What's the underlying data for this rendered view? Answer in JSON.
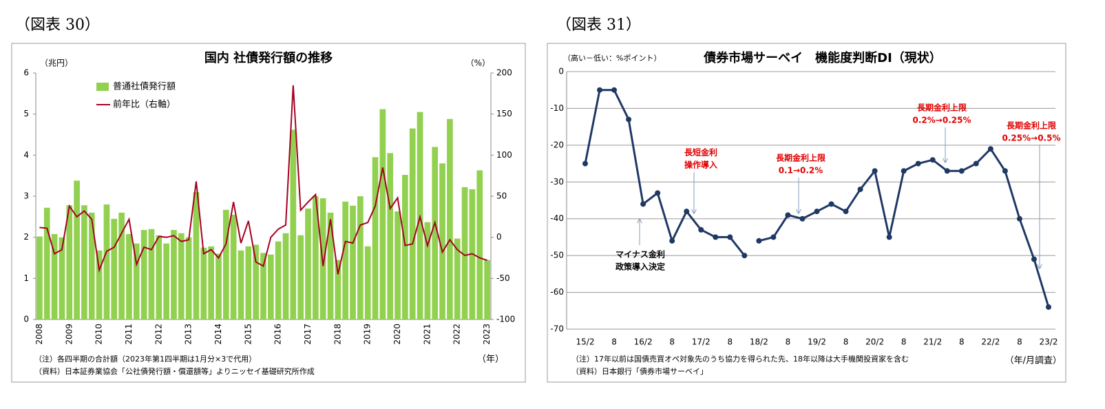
{
  "chart_data": [
    {
      "type": "bar",
      "figure_label": "（図表 30）",
      "title": "国内 社債発行額の推移",
      "y_label": "（兆円）",
      "y2_label": "（%）",
      "x_label": "（年）",
      "notes": [
        "（注）各四半期の合計額（2023年第1四半期は1月分×3で代用）",
        "（資料）日本証券業協会「公社債発行額・償還額等」よりニッセイ基礎研究所作成"
      ],
      "categories": [
        "2008",
        null,
        null,
        null,
        "2009",
        null,
        null,
        null,
        "2010",
        null,
        null,
        null,
        "2011",
        null,
        null,
        null,
        "2012",
        null,
        null,
        null,
        "2013",
        null,
        null,
        null,
        "2014",
        null,
        null,
        null,
        "2015",
        null,
        null,
        null,
        "2016",
        null,
        null,
        null,
        "2017",
        null,
        null,
        null,
        "2018",
        null,
        null,
        null,
        "2019",
        null,
        null,
        null,
        "2020",
        null,
        null,
        null,
        "2021",
        null,
        null,
        null,
        "2022",
        null,
        null,
        null,
        "2023"
      ],
      "series": [
        {
          "name": "普通社債発行額",
          "type": "bar",
          "color": "#92d050",
          "values": [
            2.02,
            2.72,
            2.08,
            2.0,
            2.78,
            3.38,
            2.78,
            2.6,
            1.68,
            2.8,
            2.45,
            2.6,
            2.08,
            1.85,
            2.18,
            2.2,
            2.05,
            1.85,
            2.18,
            2.1,
            2.0,
            3.1,
            1.75,
            1.78,
            1.6,
            2.67,
            2.55,
            1.68,
            1.78,
            1.82,
            1.62,
            1.58,
            1.9,
            2.1,
            4.62,
            2.05,
            2.7,
            3.0,
            2.95,
            2.6,
            1.45,
            2.87,
            2.77,
            3.0,
            1.78,
            3.95,
            5.12,
            4.05,
            2.63,
            3.52,
            4.65,
            5.05,
            2.37,
            4.2,
            3.8,
            4.88,
            1.97,
            3.22,
            3.17,
            3.63,
            1.45
          ]
        },
        {
          "name": "前年比（右軸）",
          "type": "line",
          "axis": "y2",
          "color": "#a50021",
          "values": [
            12,
            11,
            -20,
            -15,
            38,
            25,
            32,
            22,
            -40,
            -17,
            -12,
            5,
            22,
            -33,
            -12,
            -15,
            1,
            0,
            2,
            -5,
            -3,
            68,
            -20,
            -15,
            -25,
            -8,
            43,
            -7,
            20,
            -30,
            -35,
            0,
            10,
            15,
            185,
            33,
            43,
            52,
            -35,
            22,
            -45,
            -5,
            -7,
            15,
            18,
            38,
            85,
            35,
            48,
            -10,
            -8,
            25,
            -10,
            18,
            -18,
            -3,
            -15,
            -22,
            -20,
            -25,
            -28
          ]
        }
      ],
      "ylim": [
        0,
        6
      ],
      "yticks": [
        0,
        1,
        2,
        3,
        4,
        5,
        6
      ],
      "y2lim": [
        -100,
        200
      ],
      "y2ticks": [
        -100,
        -50,
        0,
        50,
        100,
        150,
        200
      ],
      "grid": false,
      "legend": "upper left"
    },
    {
      "type": "line",
      "figure_label": "（図表 31）",
      "title": "債券市場サーベイ　機能度判断DI（現状）",
      "y_label": "（高い－低い：%ポイント）",
      "x_label": "（年/月調査）",
      "notes": [
        "（注）17年以前は国債売買オペ対象先のうち協力を得られた先、18年以降は大手機関投資家を含む",
        "（資料）日本銀行「債券市場サーベイ」"
      ],
      "categories": [
        "15/2",
        null,
        "8",
        null,
        "16/2",
        null,
        "8",
        null,
        "17/2",
        null,
        "8",
        null,
        "18/2",
        null,
        "8",
        null,
        "19/2",
        null,
        "8",
        null,
        "20/2",
        null,
        "8",
        null,
        "21/2",
        null,
        "8",
        null,
        "22/2",
        null,
        "8",
        null,
        "23/2"
      ],
      "series": [
        {
          "color": "#1f3864",
          "values": [
            -25,
            -5,
            -5,
            -13,
            -36,
            -33,
            -46,
            -38,
            -43,
            -45,
            -45,
            -50,
            null,
            null,
            null,
            null,
            null,
            null,
            null,
            null,
            null,
            null,
            null,
            null,
            null,
            null,
            null,
            null,
            null,
            null,
            null,
            null,
            null
          ]
        },
        {
          "color": "#1f3864",
          "values": [
            null,
            null,
            null,
            null,
            null,
            null,
            null,
            null,
            null,
            null,
            null,
            null,
            -46,
            -45,
            -39,
            -40,
            -38,
            -36,
            -38,
            -32,
            -27,
            -45,
            -27,
            -25,
            -24,
            -27,
            -27,
            -25,
            -21,
            -27,
            -40,
            -51,
            -64
          ]
        }
      ],
      "ylim": [
        -70,
        0
      ],
      "yticks": [
        0,
        -10,
        -20,
        -30,
        -40,
        -50,
        -60,
        -70
      ],
      "grid": true,
      "annotations": [
        {
          "lines": [
            "長短金利",
            "操作導入"
          ],
          "color": "#e00000"
        },
        {
          "lines": [
            "マイナス金利",
            "政策導入決定"
          ],
          "color": "#000000"
        },
        {
          "lines": [
            "長期金利上限",
            "0.1→0.2%"
          ],
          "color": "#e00000"
        },
        {
          "lines": [
            "長期金利上限",
            "0.2%→0.25%"
          ],
          "color": "#e00000"
        },
        {
          "lines": [
            "長期金利上限",
            "0.25%→0.5%"
          ],
          "color": "#e00000"
        }
      ]
    }
  ]
}
